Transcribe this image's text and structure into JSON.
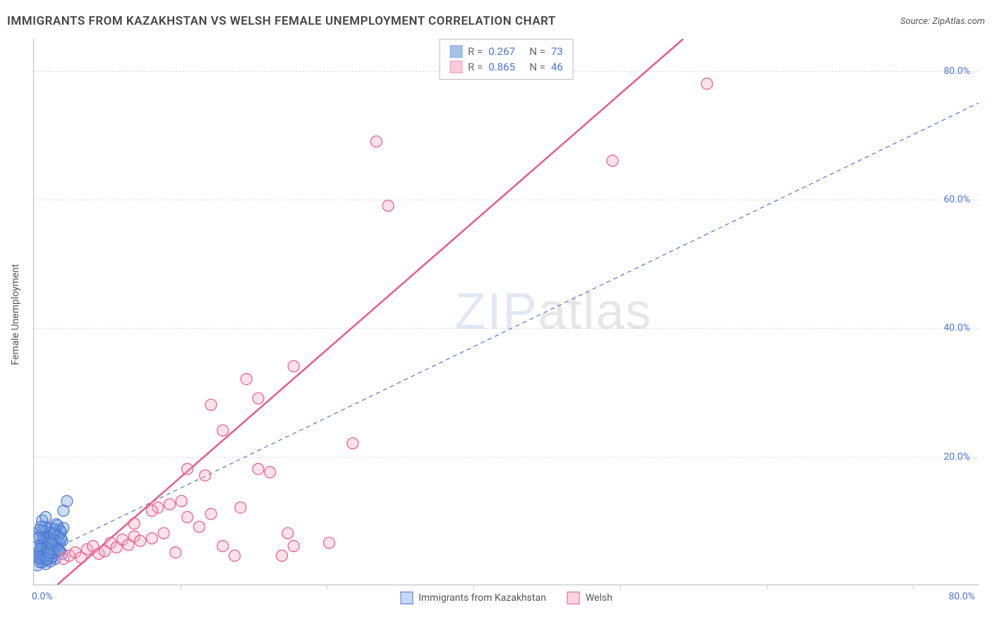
{
  "title": "IMMIGRANTS FROM KAZAKHSTAN VS WELSH FEMALE UNEMPLOYMENT CORRELATION CHART",
  "source": "Source: ZipAtlas.com",
  "watermark": {
    "part1": "ZIP",
    "part2": "atlas"
  },
  "chart": {
    "type": "scatter",
    "background_color": "#ffffff",
    "grid_color": "#dddddd",
    "axis_color": "#bbbbbb",
    "tick_label_color": "#4a74d8",
    "axis_label_color": "#555555",
    "label_fontsize": 14,
    "xlim": [
      0,
      80
    ],
    "ylim": [
      0,
      85
    ],
    "xtick_labels": {
      "first": "0.0%",
      "last": "80.0%"
    },
    "xtick_positions_pct": [
      0,
      15.5,
      31,
      46.5,
      62,
      77.5,
      93
    ],
    "yticks": [
      {
        "value": 20,
        "label": "20.0%"
      },
      {
        "value": 40,
        "label": "40.0%"
      },
      {
        "value": 60,
        "label": "60.0%"
      },
      {
        "value": 80,
        "label": "80.0%"
      }
    ],
    "y_axis_label": "Female Unemployment",
    "marker_radius": 8,
    "marker_fill_opacity": 0.35,
    "marker_stroke_width": 1.2,
    "series": [
      {
        "name": "Immigrants from Kazakhstan",
        "color": "#6b9bd8",
        "stroke_color": "#4a74d8",
        "R": "0.267",
        "N": "73",
        "trend": {
          "style": "dashed",
          "width": 1.2,
          "x1": 0,
          "y1": 4,
          "x2": 80,
          "y2": 75
        },
        "points": [
          [
            0.5,
            3.5
          ],
          [
            0.7,
            4.2
          ],
          [
            0.9,
            5.0
          ],
          [
            1.1,
            3.8
          ],
          [
            1.3,
            4.5
          ],
          [
            1.5,
            5.5
          ],
          [
            0.6,
            6.2
          ],
          [
            0.8,
            7.0
          ],
          [
            1.0,
            3.2
          ],
          [
            1.2,
            4.8
          ],
          [
            1.4,
            6.0
          ],
          [
            1.6,
            5.2
          ],
          [
            1.8,
            4.0
          ],
          [
            2.0,
            5.8
          ],
          [
            2.2,
            6.5
          ],
          [
            0.4,
            5.0
          ],
          [
            0.5,
            4.0
          ],
          [
            0.7,
            3.5
          ],
          [
            0.9,
            6.8
          ],
          [
            1.1,
            7.5
          ],
          [
            1.3,
            8.0
          ],
          [
            1.5,
            4.2
          ],
          [
            0.3,
            3.0
          ],
          [
            0.6,
            4.6
          ],
          [
            0.8,
            5.4
          ],
          [
            1.0,
            7.2
          ],
          [
            1.2,
            6.4
          ],
          [
            1.4,
            3.6
          ],
          [
            1.6,
            4.4
          ],
          [
            1.8,
            5.6
          ],
          [
            2.0,
            7.8
          ],
          [
            2.2,
            8.5
          ],
          [
            2.4,
            4.8
          ],
          [
            0.5,
            5.2
          ],
          [
            0.7,
            6.0
          ],
          [
            0.9,
            4.4
          ],
          [
            1.1,
            5.8
          ],
          [
            1.3,
            7.2
          ],
          [
            1.5,
            8.8
          ],
          [
            1.7,
            5.0
          ],
          [
            1.9,
            6.6
          ],
          [
            2.1,
            7.4
          ],
          [
            2.3,
            8.2
          ],
          [
            0.4,
            4.2
          ],
          [
            0.6,
            5.6
          ],
          [
            0.8,
            7.4
          ],
          [
            1.0,
            8.2
          ],
          [
            1.2,
            4.6
          ],
          [
            1.4,
            5.4
          ],
          [
            1.6,
            7.0
          ],
          [
            1.8,
            8.6
          ],
          [
            2.0,
            9.2
          ],
          [
            2.2,
            5.2
          ],
          [
            2.4,
            6.8
          ],
          [
            0.5,
            7.6
          ],
          [
            0.7,
            8.4
          ],
          [
            0.9,
            9.0
          ],
          [
            1.1,
            4.0
          ],
          [
            1.3,
            5.0
          ],
          [
            1.5,
            6.4
          ],
          [
            1.7,
            8.0
          ],
          [
            1.9,
            9.4
          ],
          [
            2.1,
            5.4
          ],
          [
            2.3,
            7.2
          ],
          [
            2.5,
            8.8
          ],
          [
            2.5,
            11.5
          ],
          [
            2.8,
            13.0
          ],
          [
            0.3,
            6.0
          ],
          [
            0.5,
            8.5
          ],
          [
            0.7,
            10.0
          ],
          [
            0.4,
            7.2
          ],
          [
            0.6,
            9.0
          ],
          [
            1.0,
            10.5
          ]
        ]
      },
      {
        "name": "Welsh",
        "color": "#f5a8c0",
        "stroke_color": "#e85a8a",
        "R": "0.865",
        "N": "46",
        "trend": {
          "style": "solid",
          "width": 2.5,
          "x1": 2,
          "y1": 0,
          "x2": 55,
          "y2": 85
        },
        "points": [
          [
            2.5,
            4.0
          ],
          [
            3.0,
            4.5
          ],
          [
            3.5,
            5.0
          ],
          [
            4.0,
            4.2
          ],
          [
            4.5,
            5.5
          ],
          [
            5.0,
            6.0
          ],
          [
            5.5,
            4.8
          ],
          [
            6.0,
            5.2
          ],
          [
            6.5,
            6.5
          ],
          [
            7.0,
            5.8
          ],
          [
            7.5,
            7.0
          ],
          [
            8.0,
            6.2
          ],
          [
            8.5,
            7.5
          ],
          [
            9.0,
            6.8
          ],
          [
            10.0,
            7.2
          ],
          [
            11.0,
            8.0
          ],
          [
            12.0,
            5.0
          ],
          [
            13.0,
            10.5
          ],
          [
            14.0,
            9.0
          ],
          [
            15.0,
            11.0
          ],
          [
            16.0,
            6.0
          ],
          [
            17.0,
            4.5
          ],
          [
            10.5,
            12.0
          ],
          [
            12.5,
            13.0
          ],
          [
            14.5,
            17.0
          ],
          [
            17.5,
            12.0
          ],
          [
            19.0,
            18.0
          ],
          [
            20.0,
            17.5
          ],
          [
            21.0,
            4.5
          ],
          [
            22.0,
            6.0
          ],
          [
            25.0,
            6.5
          ],
          [
            13.0,
            18.0
          ],
          [
            15.0,
            28.0
          ],
          [
            18.0,
            32.0
          ],
          [
            22.0,
            34.0
          ],
          [
            16.0,
            24.0
          ],
          [
            19.0,
            29.0
          ],
          [
            27.0,
            22.0
          ],
          [
            29.0,
            69.0
          ],
          [
            30.0,
            59.0
          ],
          [
            49.0,
            66.0
          ],
          [
            57.0,
            78.0
          ],
          [
            8.5,
            9.5
          ],
          [
            10.0,
            11.5
          ],
          [
            11.5,
            12.5
          ],
          [
            21.5,
            8.0
          ]
        ]
      }
    ],
    "legend_bottom": [
      {
        "label": "Immigrants from Kazakhstan",
        "fill": "#c3d9f5",
        "stroke": "#4a74d8"
      },
      {
        "label": "Welsh",
        "fill": "#fbd4e0",
        "stroke": "#e85a8a"
      }
    ]
  }
}
